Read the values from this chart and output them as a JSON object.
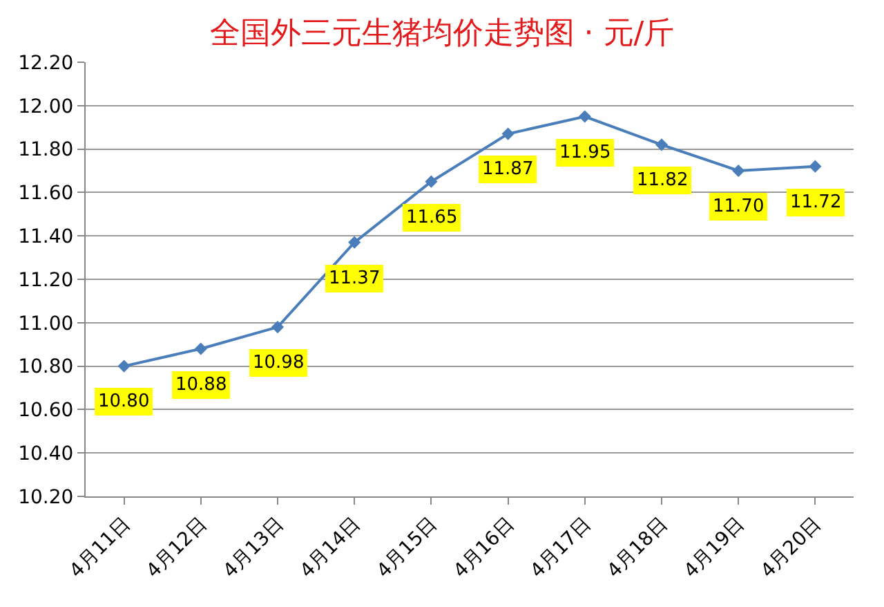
{
  "chart_data": {
    "type": "line",
    "title": "全国外三元生猪均价走势图 · 元/斤",
    "categories": [
      "4月11日",
      "4月12日",
      "4月13日",
      "4月14日",
      "4月15日",
      "4月16日",
      "4月17日",
      "4月18日",
      "4月19日",
      "4月20日"
    ],
    "series": [
      {
        "color": "#4a7ebb",
        "values": [
          10.8,
          10.88,
          10.98,
          11.37,
          11.65,
          11.87,
          11.95,
          11.82,
          11.7,
          11.72
        ],
        "value_labels": [
          "10.80",
          "10.88",
          "10.98",
          "11.37",
          "11.65",
          "11.87",
          "11.95",
          "11.82",
          "11.70",
          "11.72"
        ]
      }
    ],
    "ylim": [
      10.2,
      12.2
    ],
    "yticks": [
      {
        "value": 10.2,
        "label": "10.20"
      },
      {
        "value": 10.4,
        "label": "10.40"
      },
      {
        "value": 10.6,
        "label": "10.60"
      },
      {
        "value": 10.8,
        "label": "10.80"
      },
      {
        "value": 11.0,
        "label": "11.00"
      },
      {
        "value": 11.2,
        "label": "11.20"
      },
      {
        "value": 11.4,
        "label": "11.40"
      },
      {
        "value": 11.6,
        "label": "11.60"
      },
      {
        "value": 11.8,
        "label": "11.80"
      },
      {
        "value": 12.0,
        "label": "12.00"
      },
      {
        "value": 12.2,
        "label": "12.20"
      }
    ],
    "grid": "y",
    "marker": "diamond",
    "line_style": "solid",
    "legend": false
  }
}
